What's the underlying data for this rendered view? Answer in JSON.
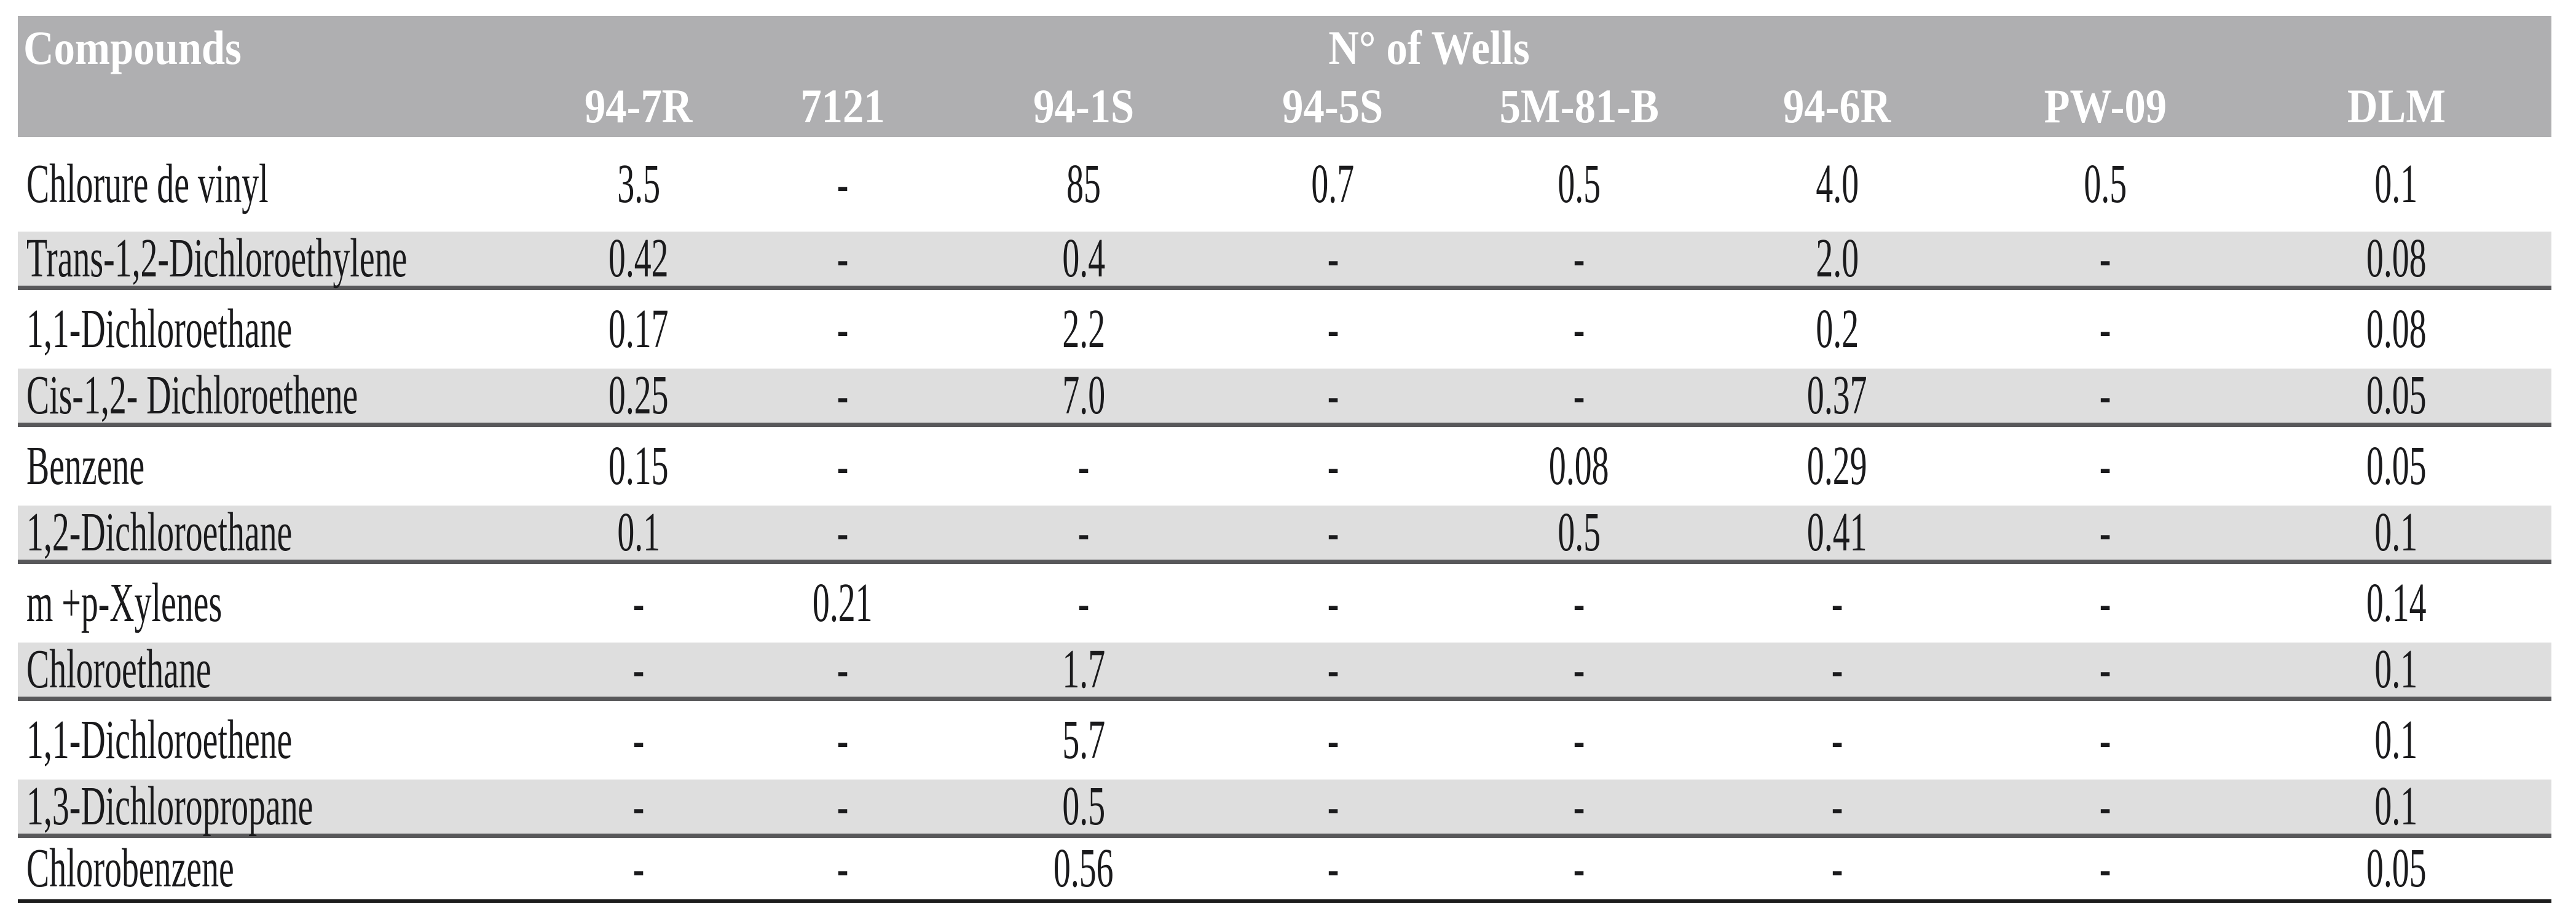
{
  "table": {
    "compounds_label": "Compounds",
    "wells_group_label": "N° of Wells",
    "well_columns": [
      "94-7R",
      "7121",
      "94-1S",
      "94-5S",
      "5M-81-B",
      "94-6R",
      "PW-09",
      "DLM"
    ],
    "rows": [
      {
        "compound": "Chlorure de vinyl",
        "values": [
          "3.5",
          "-",
          "85",
          "0.7",
          "0.5",
          "4.0",
          "0.5",
          "0.1"
        ]
      },
      {
        "compound": "Trans-1,2-Dichloroethylene",
        "values": [
          "0.42",
          "-",
          "0.4",
          "-",
          "-",
          "2.0",
          "-",
          "0.08"
        ]
      },
      {
        "compound": "1,1-Dichloroethane",
        "values": [
          "0.17",
          "-",
          "2.2",
          "-",
          "-",
          "0.2",
          "-",
          "0.08"
        ]
      },
      {
        "compound": "Cis-1,2- Dichloroethene",
        "values": [
          "0.25",
          "-",
          "7.0",
          "-",
          "-",
          "0.37",
          "-",
          "0.05"
        ]
      },
      {
        "compound": "Benzene",
        "values": [
          "0.15",
          "-",
          "-",
          "-",
          "0.08",
          "0.29",
          "-",
          "0.05"
        ]
      },
      {
        "compound": "1,2-Dichloroethane",
        "values": [
          "0.1",
          "-",
          "-",
          "-",
          "0.5",
          "0.41",
          "-",
          "0.1"
        ]
      },
      {
        "compound": "m +p-Xylenes",
        "values": [
          "-",
          "0.21",
          "-",
          "-",
          "-",
          "-",
          "-",
          "0.14"
        ]
      },
      {
        "compound": "Chloroethane",
        "values": [
          "-",
          "-",
          "1.7",
          "-",
          "-",
          "-",
          "-",
          "0.1"
        ]
      },
      {
        "compound": "1,1-Dichloroethene",
        "values": [
          "-",
          "-",
          "5.7",
          "-",
          "-",
          "-",
          "-",
          "0.1"
        ]
      },
      {
        "compound": "1,3-Dichloropropane",
        "values": [
          "-",
          "-",
          "0.5",
          "-",
          "-",
          "-",
          "-",
          "0.1"
        ]
      },
      {
        "compound": "Chlorobenzene",
        "values": [
          "-",
          "-",
          "0.56",
          "-",
          "-",
          "-",
          "-",
          "0.05"
        ]
      }
    ]
  },
  "colors": {
    "header_bg": "#afafb1",
    "header_text": "#ffffff",
    "stripe_bg": "#dedede",
    "separator_rule": "#58585a",
    "bottom_rule": "#1c1c1c",
    "body_text": "#1a1a1c",
    "page_bg": "#ffffff"
  }
}
